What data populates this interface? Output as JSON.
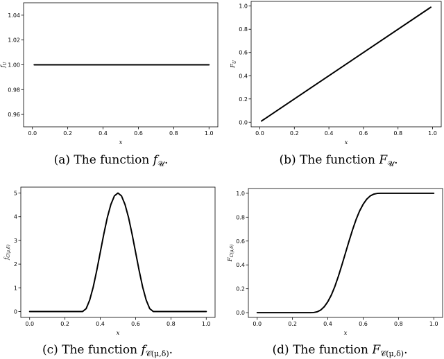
{
  "captions": [
    {
      "prefix": "(a) The function ",
      "math": "f",
      "sub": "𝒰",
      "suffix": "."
    },
    {
      "prefix": "(b) The function ",
      "math": "F",
      "sub": "𝒰",
      "suffix": "."
    },
    {
      "prefix": "(c) The function ",
      "math": "f",
      "sub": "𝒞(μ,δ)",
      "suffix": "."
    },
    {
      "prefix": "(d) The function ",
      "math": "F",
      "sub": "𝒞(μ,δ)",
      "suffix": "."
    }
  ],
  "chart_data": [
    {
      "type": "line",
      "title": "",
      "xlabel": "x",
      "ylabel": "f_U",
      "xlim": [
        -0.05,
        1.05
      ],
      "ylim": [
        0.95,
        1.05
      ],
      "xticks": [
        "0.0",
        "0.2",
        "0.4",
        "0.6",
        "0.8",
        "1.0"
      ],
      "yticks": [
        "0.96",
        "0.98",
        "1.00",
        "1.02",
        "1.04"
      ],
      "xtick_values": [
        0.0,
        0.2,
        0.4,
        0.6,
        0.8,
        1.0
      ],
      "ytick_values": [
        0.96,
        0.98,
        1.0,
        1.02,
        1.04
      ],
      "series": [
        {
          "color": "#000000",
          "x": [
            0.01,
            1.0
          ],
          "y": [
            1.0,
            1.0
          ]
        }
      ]
    },
    {
      "type": "line",
      "title": "",
      "xlabel": "x",
      "ylabel": "F_U",
      "xlim": [
        -0.05,
        1.05
      ],
      "ylim": [
        -0.04,
        1.04
      ],
      "xticks": [
        "0.0",
        "0.2",
        "0.4",
        "0.6",
        "0.8",
        "1.0"
      ],
      "yticks": [
        "0.0",
        "0.2",
        "0.4",
        "0.6",
        "0.8",
        "1.0"
      ],
      "xtick_values": [
        0.0,
        0.2,
        0.4,
        0.6,
        0.8,
        1.0
      ],
      "ytick_values": [
        0.0,
        0.2,
        0.4,
        0.6,
        0.8,
        1.0
      ],
      "series": [
        {
          "color": "#000000",
          "x": [
            0.01,
            0.99
          ],
          "y": [
            0.01,
            0.99
          ]
        }
      ]
    },
    {
      "type": "line",
      "title": "",
      "xlabel": "x",
      "ylabel": "f_C(μ,δ)",
      "xlim": [
        -0.05,
        1.05
      ],
      "ylim": [
        -0.25,
        5.25
      ],
      "xticks": [
        "0.0",
        "0.2",
        "0.4",
        "0.6",
        "0.8",
        "1.0"
      ],
      "yticks": [
        "0",
        "1",
        "2",
        "3",
        "4",
        "5"
      ],
      "xtick_values": [
        0.0,
        0.2,
        0.4,
        0.6,
        0.8,
        1.0
      ],
      "ytick_values": [
        0,
        1,
        2,
        3,
        4,
        5
      ],
      "series": [
        {
          "color": "#000000",
          "x": [
            0.0,
            0.3,
            0.32,
            0.34,
            0.36,
            0.38,
            0.4,
            0.42,
            0.44,
            0.46,
            0.48,
            0.5,
            0.52,
            0.54,
            0.56,
            0.58,
            0.6,
            0.62,
            0.64,
            0.66,
            0.68,
            0.7,
            1.0
          ],
          "y": [
            0.0,
            0.0,
            0.12,
            0.48,
            1.03,
            1.73,
            2.5,
            3.27,
            3.97,
            4.52,
            4.88,
            5.0,
            4.88,
            4.52,
            3.97,
            3.27,
            2.5,
            1.73,
            1.03,
            0.48,
            0.12,
            0.0,
            0.0
          ]
        }
      ]
    },
    {
      "type": "line",
      "title": "",
      "xlabel": "x",
      "ylabel": "F_C(μ,δ)",
      "xlim": [
        -0.05,
        1.05
      ],
      "ylim": [
        -0.04,
        1.04
      ],
      "xticks": [
        "0.0",
        "0.2",
        "0.4",
        "0.6",
        "0.8",
        "1.0"
      ],
      "yticks": [
        "0.0",
        "0.2",
        "0.4",
        "0.6",
        "0.8",
        "1.0"
      ],
      "xtick_values": [
        0.0,
        0.2,
        0.4,
        0.6,
        0.8,
        1.0
      ],
      "ytick_values": [
        0.0,
        0.2,
        0.4,
        0.6,
        0.8,
        1.0
      ],
      "series": [
        {
          "color": "#000000",
          "x": [
            0.0,
            0.3,
            0.32,
            0.34,
            0.36,
            0.38,
            0.4,
            0.42,
            0.44,
            0.46,
            0.48,
            0.5,
            0.52,
            0.54,
            0.56,
            0.58,
            0.6,
            0.62,
            0.64,
            0.66,
            0.68,
            0.7,
            1.0
          ],
          "y": [
            0.0,
            0.0,
            0.001,
            0.007,
            0.022,
            0.05,
            0.092,
            0.148,
            0.22,
            0.306,
            0.401,
            0.5,
            0.599,
            0.694,
            0.78,
            0.852,
            0.908,
            0.95,
            0.978,
            0.993,
            0.999,
            1.0,
            1.0
          ]
        }
      ]
    }
  ]
}
